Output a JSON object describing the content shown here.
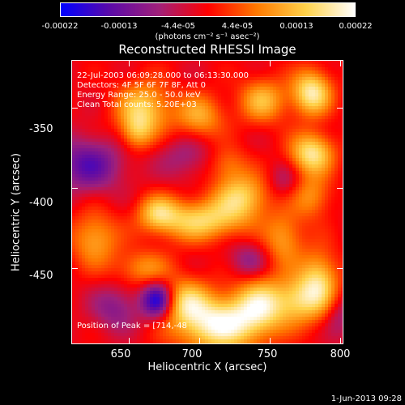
{
  "colorbar": {
    "ticks": [
      "-0.00022",
      "-0.00013",
      "-4.4e-05",
      "4.4e-05",
      "0.00013",
      "0.00022"
    ],
    "units": "(photons cm⁻² s⁻¹ asec⁻²)",
    "colors": [
      "#0000ff",
      "#5b0aa8",
      "#a0207a",
      "#ff0000",
      "#ff7a00",
      "#ffd24a",
      "#ffffff"
    ]
  },
  "info": {
    "line1": "22-Jul-2003 06:09:28.000 to 06:13:30.000",
    "line2": "Detectors: 4F 5F 6F 7F 8F, Att 0",
    "line3": "Energy Range: 25.0 - 50.0 keV",
    "line4": "Clean     Total counts: 5.20E+03",
    "peak": "Position of Peak = [714,-48"
  },
  "footer": {
    "timestamp": "1-Jun-2013 09:28"
  },
  "chart_data": {
    "type": "heatmap",
    "title": "Reconstructed RHESSI Image",
    "xlabel": "Heliocentric X (arcsec)",
    "ylabel": "Heliocentric Y (arcsec)",
    "xlim": [
      609,
      802
    ],
    "ylim": [
      -497,
      -320
    ],
    "x_ticks": [
      650,
      700,
      750,
      800
    ],
    "y_ticks": [
      -350,
      -400,
      -450
    ],
    "x_tick_labels": [
      "650",
      "700",
      "750",
      "800"
    ],
    "y_tick_labels": [
      "-350",
      "-400",
      "-450"
    ],
    "zlim": [
      -0.00022,
      0.00022
    ],
    "background": "#000000",
    "sources": [
      {
        "x": 714,
        "y": -485,
        "w": 1.0,
        "sx": 22,
        "sy": 12
      },
      {
        "x": 690,
        "y": -470,
        "w": 0.6,
        "sx": 12,
        "sy": 10
      },
      {
        "x": 745,
        "y": -472,
        "w": 0.75,
        "sx": 14,
        "sy": 12
      },
      {
        "x": 785,
        "y": -460,
        "w": 0.8,
        "sx": 10,
        "sy": 14
      },
      {
        "x": 770,
        "y": -470,
        "w": 0.5,
        "sx": 10,
        "sy": 10
      },
      {
        "x": 700,
        "y": -420,
        "w": 0.75,
        "sx": 22,
        "sy": 9
      },
      {
        "x": 730,
        "y": -405,
        "w": 0.7,
        "sx": 14,
        "sy": 10
      },
      {
        "x": 670,
        "y": -415,
        "w": 0.55,
        "sx": 10,
        "sy": 8
      },
      {
        "x": 625,
        "y": -432,
        "w": 0.55,
        "sx": 12,
        "sy": 12
      },
      {
        "x": 660,
        "y": -450,
        "w": 0.45,
        "sx": 14,
        "sy": 8
      },
      {
        "x": 760,
        "y": -432,
        "w": 0.5,
        "sx": 10,
        "sy": 12
      },
      {
        "x": 780,
        "y": -405,
        "w": 0.45,
        "sx": 10,
        "sy": 10
      },
      {
        "x": 660,
        "y": -350,
        "w": 0.7,
        "sx": 14,
        "sy": 12
      },
      {
        "x": 700,
        "y": -355,
        "w": 0.55,
        "sx": 12,
        "sy": 10
      },
      {
        "x": 745,
        "y": -345,
        "w": 0.6,
        "sx": 12,
        "sy": 10
      },
      {
        "x": 780,
        "y": -340,
        "w": 0.9,
        "sx": 10,
        "sy": 10
      },
      {
        "x": 780,
        "y": -378,
        "w": 0.85,
        "sx": 11,
        "sy": 9
      },
      {
        "x": 720,
        "y": -385,
        "w": 0.35,
        "sx": 10,
        "sy": 8
      },
      {
        "x": 655,
        "y": -365,
        "w": 0.45,
        "sx": 8,
        "sy": 8
      },
      {
        "x": 620,
        "y": -385,
        "w": -0.6,
        "sx": 18,
        "sy": 12
      },
      {
        "x": 670,
        "y": -470,
        "w": -0.9,
        "sx": 8,
        "sy": 8
      },
      {
        "x": 640,
        "y": -475,
        "w": -0.4,
        "sx": 12,
        "sy": 10
      },
      {
        "x": 735,
        "y": -445,
        "w": -0.35,
        "sx": 10,
        "sy": 8
      },
      {
        "x": 800,
        "y": -480,
        "w": -0.3,
        "sx": 8,
        "sy": 10
      },
      {
        "x": 690,
        "y": -380,
        "w": -0.3,
        "sx": 14,
        "sy": 10
      },
      {
        "x": 760,
        "y": -395,
        "w": -0.25,
        "sx": 8,
        "sy": 8
      }
    ]
  }
}
